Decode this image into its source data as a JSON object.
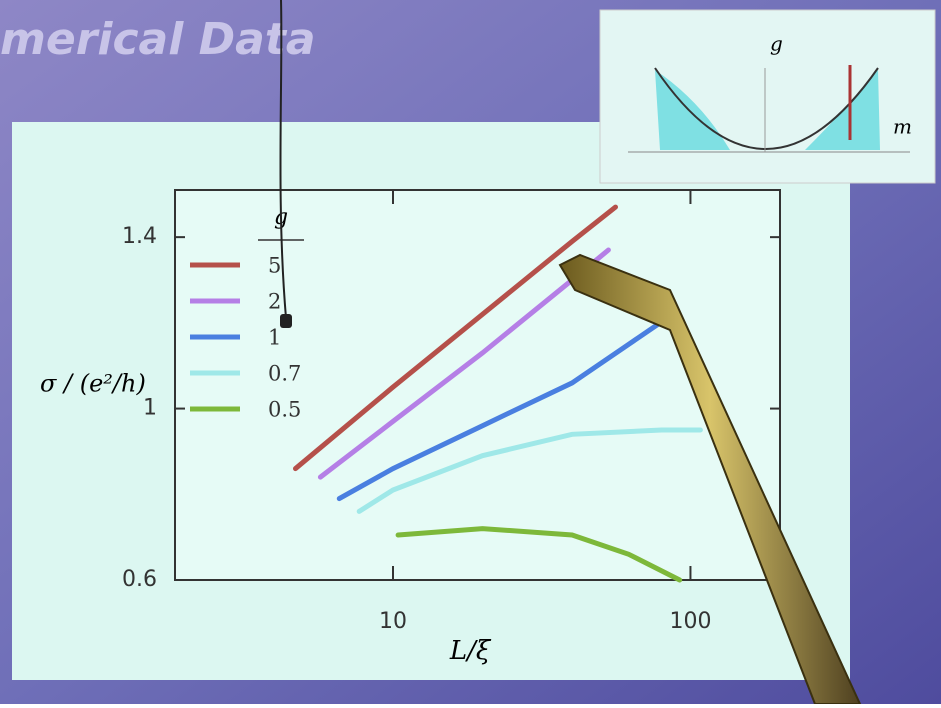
{
  "slide": {
    "title": "merical Data"
  },
  "inset": {
    "y_label": "g",
    "x_label": "m"
  },
  "chart_data": {
    "type": "line",
    "x_label": "L/ξ",
    "y_label": "σ / (e²/h)",
    "legend_title": "g",
    "log_x": true,
    "xlim": [
      1.85,
      200
    ],
    "xticks": [
      10,
      100
    ],
    "ylim": [
      0.6,
      1.51
    ],
    "yticks": [
      0.6,
      1,
      1.4
    ],
    "legend": "upper left",
    "series": [
      {
        "name": "5",
        "color": "#b5504a",
        "x": [
          4.7,
          10,
          20,
          40,
          56
        ],
        "values": [
          0.86,
          1.05,
          1.22,
          1.39,
          1.47
        ]
      },
      {
        "name": "2",
        "color": "#b57fe6",
        "x": [
          5.7,
          10,
          20,
          40,
          53
        ],
        "values": [
          0.84,
          0.97,
          1.13,
          1.3,
          1.37
        ]
      },
      {
        "name": "1",
        "color": "#4a7fe0",
        "x": [
          6.6,
          10,
          20,
          40,
          62,
          79
        ],
        "values": [
          0.79,
          0.86,
          0.96,
          1.06,
          1.15,
          1.2
        ]
      },
      {
        "name": "0.7",
        "color": "#9fe8e8",
        "x": [
          7.7,
          10,
          20,
          40,
          80,
          108
        ],
        "values": [
          0.76,
          0.81,
          0.89,
          0.94,
          0.95,
          0.95
        ]
      },
      {
        "name": "0.5",
        "color": "#7db83a",
        "x": [
          10.4,
          20,
          40,
          62,
          92
        ],
        "values": [
          0.705,
          0.72,
          0.705,
          0.66,
          0.6
        ]
      }
    ]
  }
}
